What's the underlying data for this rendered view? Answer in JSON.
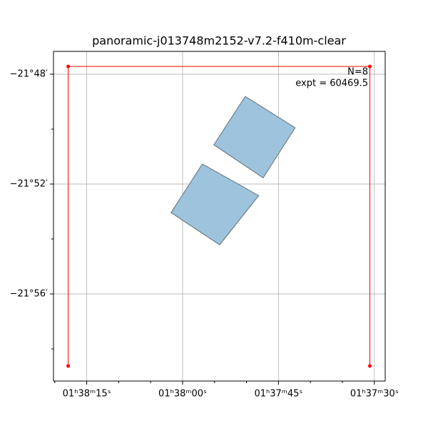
{
  "chart_data": {
    "type": "footprint",
    "title": "panoramic-j013748m2152-v7.2-f410m-clear",
    "xlim": [
      5900.2,
      5848.3
    ],
    "ylim": [
      -1319.17,
      -1307.17
    ],
    "xticks": [
      {
        "value": 5895,
        "label": "01ʰ38ᵐ15ˢ"
      },
      {
        "value": 5880,
        "label": "01ʰ38ᵐ00ˢ"
      },
      {
        "value": 5865,
        "label": "01ʰ37ᵐ45ˢ"
      },
      {
        "value": 5850,
        "label": "01ʰ37ᵐ30ˢ"
      }
    ],
    "yticks": [
      {
        "value": -1308,
        "label": "−21°48′"
      },
      {
        "value": -1312,
        "label": "−21°52′"
      },
      {
        "value": -1316,
        "label": "−21°56′"
      }
    ],
    "xminor": [
      5900,
      5890,
      5885,
      5875,
      5870,
      5860,
      5855
    ],
    "yminor": [
      -1310,
      -1314,
      -1318
    ],
    "grid": true,
    "polygons": [
      {
        "x": [
          5870.2,
          5862.4,
          5867.4,
          5875.1
        ],
        "y": [
          -1308.81,
          -1309.95,
          -1311.77,
          -1310.57
        ]
      },
      {
        "x": [
          5876.9,
          5868.1,
          5874.2,
          5881.8
        ],
        "y": [
          -1311.27,
          -1312.42,
          -1314.21,
          -1313.04
        ]
      }
    ],
    "polygon_color": "#9ec4dd",
    "polygon_edge": "#6f7f8c",
    "bounds": {
      "x": [
        5897.9,
        5897.9,
        5850.7,
        5850.7
      ],
      "y": [
        -1318.62,
        -1307.72,
        -1307.72,
        -1318.62
      ],
      "color": "#ff0000"
    },
    "annotations": [
      "N=8",
      "expt = 60469.5"
    ]
  }
}
